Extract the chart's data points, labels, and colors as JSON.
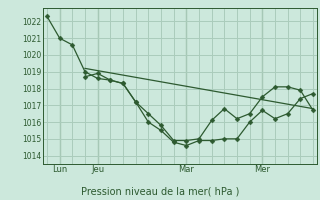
{
  "bg_color": "#cce8dc",
  "grid_color": "#aaccbb",
  "line_color": "#2d5a30",
  "title": "Pression niveau de la mer( hPa )",
  "ylabel_ticks": [
    1014,
    1015,
    1016,
    1017,
    1018,
    1019,
    1020,
    1021,
    1022
  ],
  "ylim": [
    1013.5,
    1022.8
  ],
  "day_labels": [
    "Lun",
    "Jeu",
    "Mar",
    "Mer"
  ],
  "day_positions": [
    1,
    4,
    11,
    17
  ],
  "total_points": 22,
  "line1_x": [
    0,
    1,
    2,
    3,
    4,
    5,
    6,
    7,
    8,
    9,
    10,
    11,
    12,
    13,
    14,
    15,
    16,
    17,
    18,
    19,
    20,
    21
  ],
  "line1_y": [
    1022.3,
    1021.0,
    1020.6,
    1019.0,
    1018.6,
    1018.5,
    1018.3,
    1017.2,
    1016.0,
    1015.5,
    1014.8,
    1014.6,
    1014.9,
    1014.9,
    1015.0,
    1015.0,
    1016.0,
    1016.7,
    1016.2,
    1016.5,
    1017.4,
    1017.7
  ],
  "line2_x": [
    3,
    4,
    5,
    6,
    7,
    8,
    9,
    10,
    11,
    12,
    13,
    14,
    15,
    16,
    17,
    18,
    19,
    20,
    21
  ],
  "line2_y": [
    1018.7,
    1018.9,
    1018.5,
    1018.3,
    1017.2,
    1016.5,
    1015.8,
    1014.9,
    1014.9,
    1015.0,
    1016.1,
    1016.8,
    1016.2,
    1016.5,
    1017.5,
    1018.1,
    1018.1,
    1017.9,
    1016.7
  ],
  "line3_x": [
    3,
    21
  ],
  "line3_y": [
    1019.2,
    1016.8
  ],
  "xlim": [
    -0.3,
    21.3
  ]
}
